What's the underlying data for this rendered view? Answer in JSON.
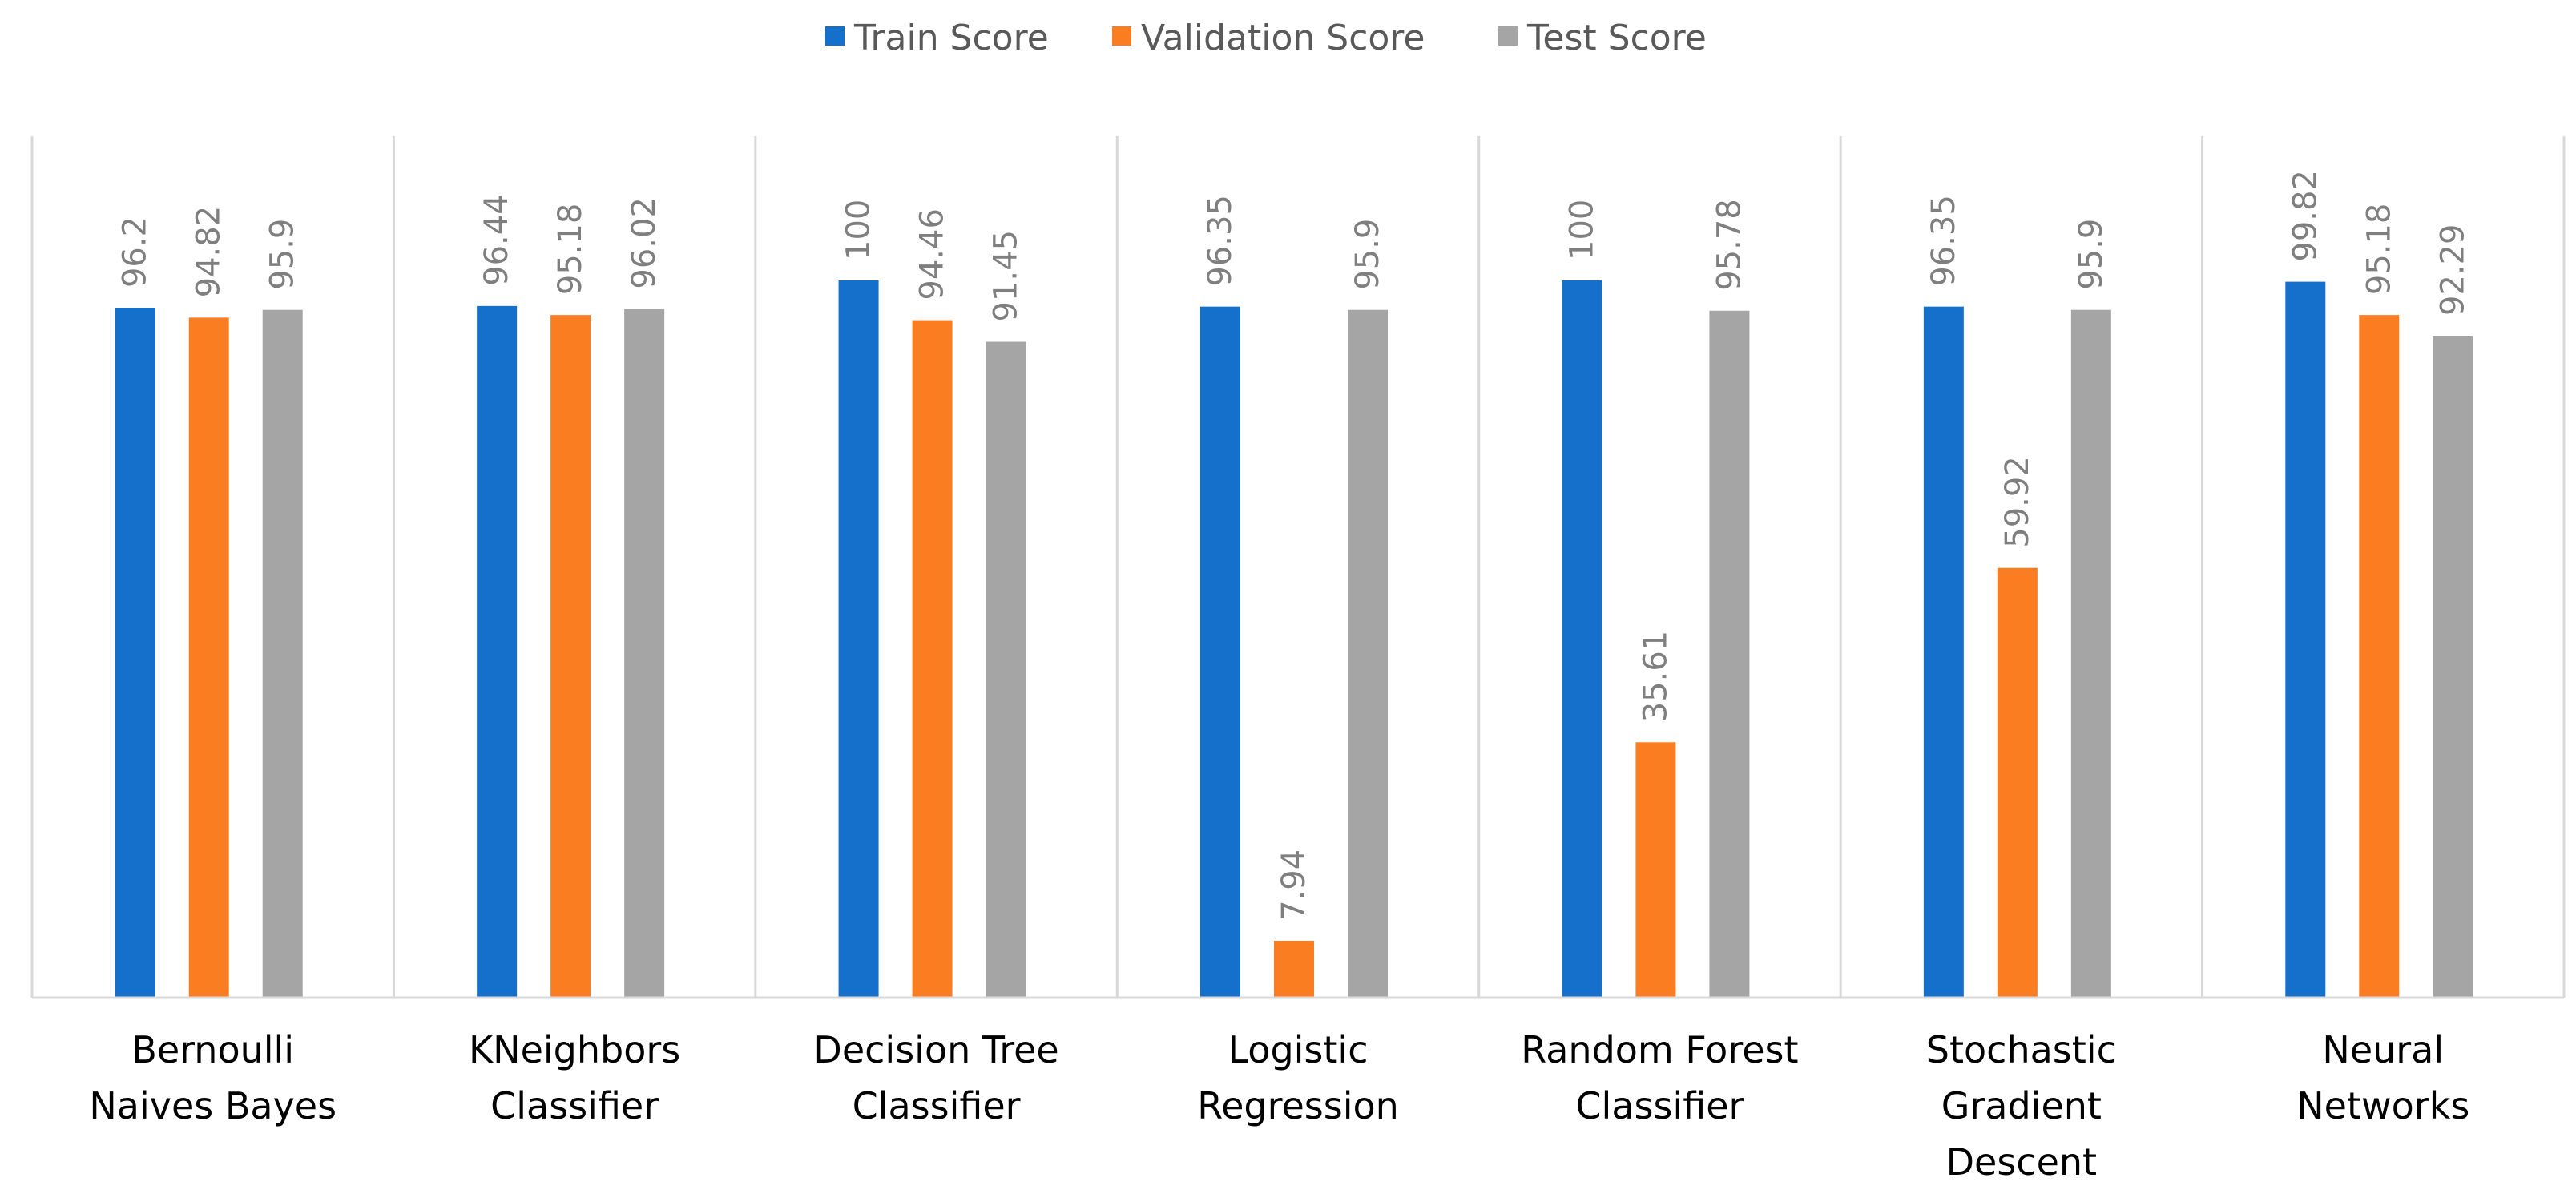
{
  "chart_data": {
    "type": "bar",
    "title": "",
    "xlabel": "",
    "ylabel": "",
    "ylim": [
      0,
      100
    ],
    "grid": false,
    "legend_position": "top-center",
    "categories": [
      [
        "Bernoulli",
        "Naives Bayes"
      ],
      [
        "KNeighbors",
        "Classifier"
      ],
      [
        "Decision Tree",
        "Classifier"
      ],
      [
        "Logistic",
        "Regression"
      ],
      [
        "Random Forest",
        "Classifier"
      ],
      [
        "Stochastic",
        "Gradient",
        "Descent"
      ],
      [
        "Neural",
        "Networks"
      ]
    ],
    "series": [
      {
        "name": "Train Score",
        "color": "#1570CC",
        "values": [
          96.2,
          96.44,
          100,
          96.35,
          100,
          96.35,
          99.82
        ],
        "labels": [
          "96.2",
          "96.44",
          "100",
          "96.35",
          "100",
          "96.35",
          "99.82"
        ]
      },
      {
        "name": "Validation Score",
        "color": "#FB7D22",
        "values": [
          94.82,
          95.18,
          94.46,
          7.94,
          35.61,
          59.92,
          95.18
        ],
        "labels": [
          "94.82",
          "95.18",
          "94.46",
          "7.94",
          "35.61",
          "59.92",
          "95.18"
        ]
      },
      {
        "name": "Test Score",
        "color": "#A5A5A5",
        "values": [
          95.9,
          96.02,
          91.45,
          95.9,
          95.78,
          95.9,
          92.29
        ],
        "labels": [
          "95.9",
          "96.02",
          "91.45",
          "95.9",
          "95.78",
          "95.9",
          "92.29"
        ]
      }
    ],
    "colors": {
      "divider": "#D9D9D9",
      "axis": "#D9D9D9",
      "data_label": "#7F7F7F",
      "legend_text": "#595959"
    }
  }
}
